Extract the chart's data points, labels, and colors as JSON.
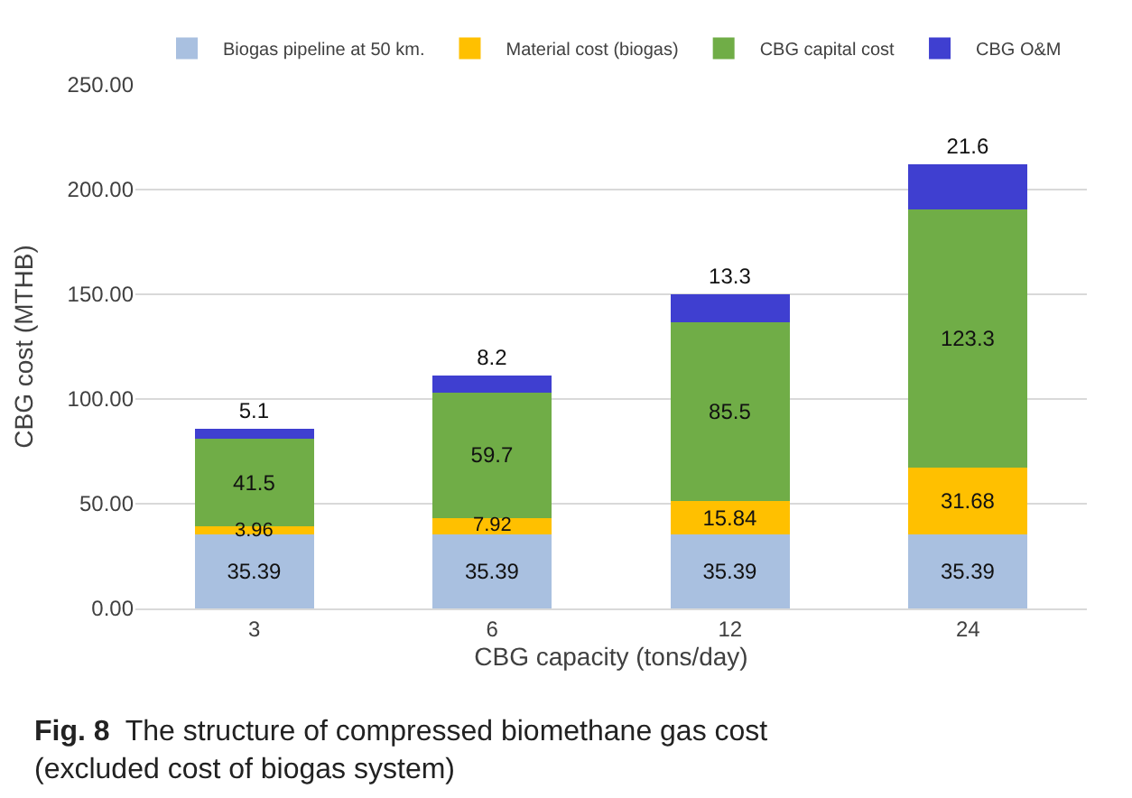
{
  "chart_data": {
    "type": "bar",
    "stacked": true,
    "xlabel": "CBG capacity (tons/day)",
    "ylabel": "CBG cost (MTHB)",
    "categories": [
      "3",
      "6",
      "12",
      "24"
    ],
    "series": [
      {
        "name": "Biogas pipeline at 50 km.",
        "color": "#a9c0e0",
        "values": [
          35.39,
          35.39,
          35.39,
          35.39
        ]
      },
      {
        "name": "Material cost (biogas)",
        "color": "#ffc000",
        "values": [
          3.96,
          7.92,
          15.84,
          31.68
        ]
      },
      {
        "name": "CBG capital cost",
        "color": "#70ad47",
        "values": [
          41.5,
          59.7,
          85.5,
          123.3
        ]
      },
      {
        "name": "CBG O&M",
        "color": "#3f3fd0",
        "values": [
          5.1,
          8.2,
          13.3,
          21.6
        ]
      }
    ],
    "data_labels": true,
    "ylim": [
      0,
      250
    ],
    "yticks": [
      {
        "value": 0,
        "label": "0.00"
      },
      {
        "value": 50,
        "label": "50.00"
      },
      {
        "value": 100,
        "label": "100.00"
      },
      {
        "value": 150,
        "label": "150.00"
      },
      {
        "value": 200,
        "label": "200.00"
      },
      {
        "value": 250,
        "label": "250.00"
      }
    ],
    "grid": "y",
    "legend": "top",
    "annotations": [
      "Fig. 8  The structure of compressed biomethane gas cost (excluded cost of biogas system)"
    ]
  }
}
